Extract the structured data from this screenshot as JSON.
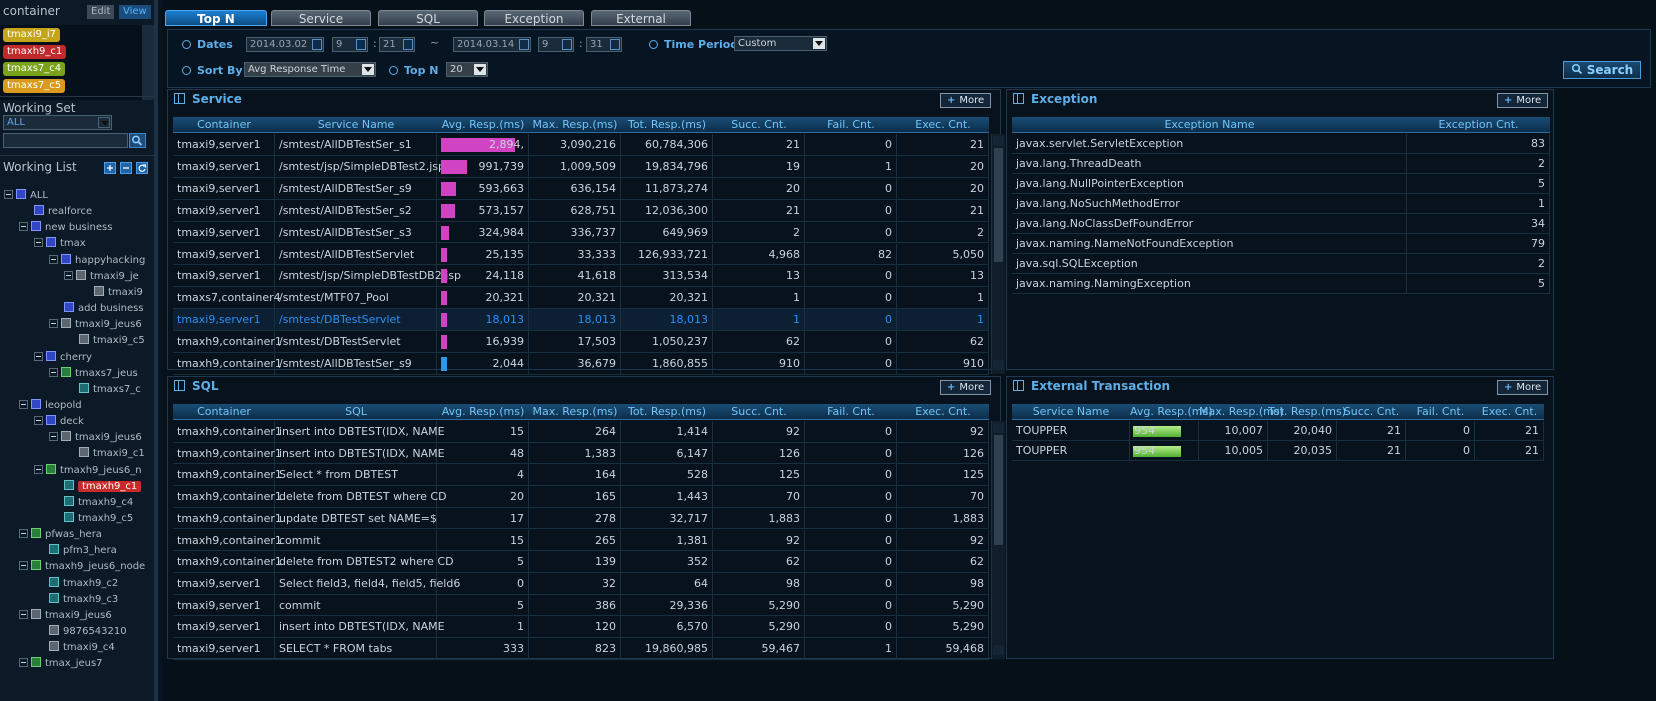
{
  "sidebar": {
    "container_title": "container",
    "edit_label": "Edit",
    "view_label": "View",
    "containers": [
      {
        "label": "tmaxi9_i7",
        "color": "#c4a51a"
      },
      {
        "label": "tmaxh9_c1",
        "color": "#c02a2a"
      },
      {
        "label": "tmaxs7_c4",
        "color": "#79a21a"
      },
      {
        "label": "tmaxs7_c5",
        "color": "#d99a1e"
      }
    ],
    "working_set_title": "Working Set",
    "working_set_value": "ALL",
    "search_placeholder": "",
    "working_list_title": "Working List",
    "tree": [
      {
        "label": "ALL",
        "depth": 0,
        "toggle": true,
        "icon": "root"
      },
      {
        "label": "realforce",
        "depth": 2,
        "toggle": false,
        "icon": "blue"
      },
      {
        "label": "new business",
        "depth": 1,
        "toggle": true,
        "icon": "blue"
      },
      {
        "label": "tmax",
        "depth": 2,
        "toggle": true,
        "icon": "blue"
      },
      {
        "label": "happyhacking",
        "depth": 3,
        "toggle": true,
        "icon": "blue"
      },
      {
        "label": "tmaxi9_je",
        "depth": 4,
        "toggle": true,
        "icon": "gray"
      },
      {
        "label": "tmaxi9",
        "depth": 6,
        "toggle": false,
        "icon": "gray"
      },
      {
        "label": "add business",
        "depth": 4,
        "toggle": false,
        "icon": "blue"
      },
      {
        "label": "tmaxi9_jeus6",
        "depth": 3,
        "toggle": true,
        "icon": "gray"
      },
      {
        "label": "tmaxi9_c5",
        "depth": 5,
        "toggle": false,
        "icon": "gray"
      },
      {
        "label": "cherry",
        "depth": 2,
        "toggle": true,
        "icon": "blue"
      },
      {
        "label": "tmaxs7_jeus",
        "depth": 3,
        "toggle": true,
        "icon": "green"
      },
      {
        "label": "tmaxs7_c",
        "depth": 5,
        "toggle": false,
        "icon": "teal"
      },
      {
        "label": "leopold",
        "depth": 1,
        "toggle": true,
        "icon": "blue"
      },
      {
        "label": "deck",
        "depth": 2,
        "toggle": true,
        "icon": "blue"
      },
      {
        "label": "tmaxi9_jeus6",
        "depth": 3,
        "toggle": true,
        "icon": "gray"
      },
      {
        "label": "tmaxi9_c1",
        "depth": 5,
        "toggle": false,
        "icon": "gray"
      },
      {
        "label": "tmaxh9_jeus6_n",
        "depth": 2,
        "toggle": true,
        "icon": "green"
      },
      {
        "label": "tmaxh9_c1",
        "depth": 4,
        "toggle": false,
        "icon": "teal",
        "selected": true
      },
      {
        "label": "tmaxh9_c4",
        "depth": 4,
        "toggle": false,
        "icon": "teal"
      },
      {
        "label": "tmaxh9_c5",
        "depth": 4,
        "toggle": false,
        "icon": "teal"
      },
      {
        "label": "pfwas_hera",
        "depth": 1,
        "toggle": true,
        "icon": "green"
      },
      {
        "label": "pfm3_hera",
        "depth": 3,
        "toggle": false,
        "icon": "teal"
      },
      {
        "label": "tmaxh9_jeus6_node",
        "depth": 1,
        "toggle": true,
        "icon": "green"
      },
      {
        "label": "tmaxh9_c2",
        "depth": 3,
        "toggle": false,
        "icon": "teal"
      },
      {
        "label": "tmaxh9_c3",
        "depth": 3,
        "toggle": false,
        "icon": "teal"
      },
      {
        "label": "tmaxi9_jeus6",
        "depth": 1,
        "toggle": true,
        "icon": "gray"
      },
      {
        "label": "9876543210",
        "depth": 3,
        "toggle": false,
        "icon": "gray"
      },
      {
        "label": "tmaxi9_c4",
        "depth": 3,
        "toggle": false,
        "icon": "gray"
      },
      {
        "label": "tmax_jeus7",
        "depth": 1,
        "toggle": true,
        "icon": "green"
      }
    ]
  },
  "tabs": [
    "Top N",
    "Service",
    "SQL",
    "Exception",
    "External"
  ],
  "filter": {
    "dates_label": "Dates",
    "start_date": "2014.03.02",
    "start_hour": "9",
    "start_min": "21",
    "separator": "~",
    "end_date": "2014.03.14",
    "end_hour": "9",
    "end_min": "31",
    "period_label": "Time Period",
    "period_value": "Custom",
    "sort_label": "Sort By",
    "sort_value": "Avg Response Time",
    "topn_label": "Top N",
    "topn_value": "20",
    "search_label": "Search"
  },
  "more_label": "More",
  "colors": {
    "service_bar": "#d044c4",
    "service_bar_blue": "#2c9ae8",
    "sql_bar": "#78c93c"
  },
  "service": {
    "title": "Service",
    "columns": [
      "Container",
      "Service Name",
      "Avg. Resp.(ms)",
      "Max. Resp.(ms)",
      "Tot. Resp.(ms)",
      "Succ. Cnt.",
      "Fail. Cnt.",
      "Exec. Cnt."
    ],
    "rows": [
      {
        "cells": [
          "tmaxi9,server1",
          "/smtest/AllDBTestSer_s1",
          "2,894,",
          "3,090,216",
          "60,784,306",
          "21",
          "0",
          "21"
        ],
        "fill": 0.98
      },
      {
        "cells": [
          "tmaxi9,server1",
          "/smtest/jsp/SimpleDBTest2.jsp",
          "991,739",
          "1,009,509",
          "19,834,796",
          "19",
          "1",
          "20"
        ],
        "fill": 0.34
      },
      {
        "cells": [
          "tmaxi9,server1",
          "/smtest/AllDBTestSer_s9",
          "593,663",
          "636,154",
          "11,873,274",
          "20",
          "0",
          "20"
        ],
        "fill": 0.2
      },
      {
        "cells": [
          "tmaxi9,server1",
          "/smtest/AllDBTestSer_s2",
          "573,157",
          "628,751",
          "12,036,300",
          "21",
          "0",
          "21"
        ],
        "fill": 0.19
      },
      {
        "cells": [
          "tmaxi9,server1",
          "/smtest/AllDBTestSer_s3",
          "324,984",
          "336,737",
          "649,969",
          "2",
          "0",
          "2"
        ],
        "fill": 0.11
      },
      {
        "cells": [
          "tmaxi9,server1",
          "/smtest/AllDBTestServlet",
          "25,135",
          "33,333",
          "126,933,721",
          "4,968",
          "82",
          "5,050"
        ],
        "fill": 0.08
      },
      {
        "cells": [
          "tmaxi9,server1",
          "/smtest/jsp/SimpleDBTestDB2.jsp",
          "24,118",
          "41,618",
          "313,534",
          "13",
          "0",
          "13"
        ],
        "fill": 0.08
      },
      {
        "cells": [
          "tmaxs7,container4",
          "/smtest/MTF07_Pool",
          "20,321",
          "20,321",
          "20,321",
          "1",
          "0",
          "1"
        ],
        "fill": 0.08
      },
      {
        "cells": [
          "tmaxi9,server1",
          "/smtest/DBTestServlet",
          "18,013",
          "18,013",
          "18,013",
          "1",
          "0",
          "1"
        ],
        "fill": 0.08,
        "selected": true
      },
      {
        "cells": [
          "tmaxh9,container1",
          "/smtest/DBTestServlet",
          "16,939",
          "17,503",
          "1,050,237",
          "62",
          "0",
          "62"
        ],
        "fill": 0.08
      },
      {
        "cells": [
          "tmaxh9,container1",
          "/smtest/AllDBTestSer_s9",
          "2,044",
          "36,679",
          "1,860,855",
          "910",
          "0",
          "910"
        ],
        "fill": 0.08,
        "blue": true
      }
    ]
  },
  "exception": {
    "title": "Exception",
    "columns": [
      "Exception Name",
      "Exception Cnt."
    ],
    "rows": [
      [
        "javax.servlet.ServletException",
        "83"
      ],
      [
        "java.lang.ThreadDeath",
        "2"
      ],
      [
        "java.lang.NullPointerException",
        "5"
      ],
      [
        "java.lang.NoSuchMethodError",
        "1"
      ],
      [
        "java.lang.NoClassDefFoundError",
        "34"
      ],
      [
        "javax.naming.NameNotFoundException",
        "79"
      ],
      [
        "java.sql.SQLException",
        "2"
      ],
      [
        "javax.naming.NamingException",
        "5"
      ]
    ]
  },
  "sql": {
    "title": "SQL",
    "columns": [
      "Container",
      "SQL",
      "Avg. Resp.(ms)",
      "Max. Resp.(ms)",
      "Tot. Resp.(ms)",
      "Succ. Cnt.",
      "Fail. Cnt.",
      "Exec. Cnt."
    ],
    "rows": [
      [
        "tmaxh9,container1",
        "insert into DBTEST(IDX, NAME",
        "15",
        "264",
        "1,414",
        "92",
        "0",
        "92"
      ],
      [
        "tmaxh9,container1",
        "insert into DBTEST(IDX, NAME",
        "48",
        "1,383",
        "6,147",
        "126",
        "0",
        "126"
      ],
      [
        "tmaxh9,container1",
        "Select * from DBTEST",
        "4",
        "164",
        "528",
        "125",
        "0",
        "125"
      ],
      [
        "tmaxh9,container1",
        "delete from DBTEST where CD",
        "20",
        "165",
        "1,443",
        "70",
        "0",
        "70"
      ],
      [
        "tmaxh9,container1",
        "update DBTEST set NAME=$",
        "17",
        "278",
        "32,717",
        "1,883",
        "0",
        "1,883"
      ],
      [
        "tmaxh9,container1",
        "commit",
        "15",
        "265",
        "1,381",
        "92",
        "0",
        "92"
      ],
      [
        "tmaxh9,container1",
        "delete from DBTEST2 where CD",
        "5",
        "139",
        "352",
        "62",
        "0",
        "62"
      ],
      [
        "tmaxi9,server1",
        "Select field3, field4, field5, field6",
        "0",
        "32",
        "64",
        "98",
        "0",
        "98"
      ],
      [
        "tmaxi9,server1",
        "commit",
        "5",
        "386",
        "29,336",
        "5,290",
        "0",
        "5,290"
      ],
      [
        "tmaxi9,server1",
        "insert into DBTEST(IDX, NAME",
        "1",
        "120",
        "6,570",
        "5,290",
        "0",
        "5,290"
      ],
      [
        "tmaxi9,server1",
        "SELECT * FROM tabs",
        "333",
        "823",
        "19,860,985",
        "59,467",
        "1",
        "59,468"
      ]
    ]
  },
  "external": {
    "title": "External Transaction",
    "columns": [
      "Service Name",
      "Avg. Resp.(ms)",
      "Max. Resp.(ms)",
      "Tot. Resp.(ms)",
      "Succ. Cnt.",
      "Fail. Cnt.",
      "Exec. Cnt."
    ],
    "rows": [
      {
        "cells": [
          "TOUPPER",
          "954",
          "10,007",
          "20,040",
          "21",
          "0",
          "21"
        ],
        "fill": 0.9
      },
      {
        "cells": [
          "TOUPPER",
          "954",
          "10,005",
          "20,035",
          "21",
          "0",
          "21"
        ],
        "fill": 0.9
      }
    ]
  }
}
